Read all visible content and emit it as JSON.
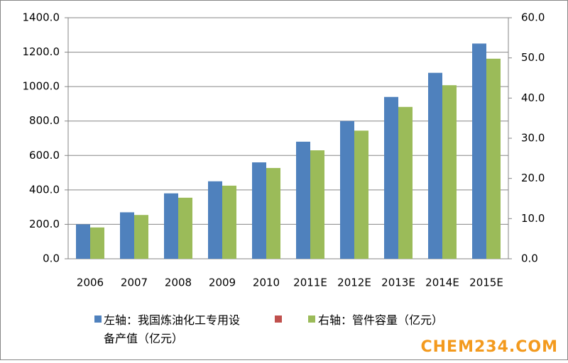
{
  "chart_data": {
    "type": "bar",
    "categories": [
      "2006",
      "2007",
      "2008",
      "2009",
      "2010",
      "2011E",
      "2012E",
      "2013E",
      "2014E",
      "2015E"
    ],
    "series": [
      {
        "name": "左轴：我国炼油化工专用设备产值（亿元）",
        "color": "#4f81bd",
        "values": [
          200,
          270,
          380,
          450,
          560,
          680,
          800,
          940,
          1080,
          1250
        ]
      },
      {
        "name": "右轴：管件容量（亿元）",
        "color": "#9bbb59",
        "axis": "y2",
        "values": [
          7.8,
          10.9,
          15.2,
          18.2,
          22.6,
          27.0,
          31.9,
          37.8,
          43.2,
          49.8
        ]
      }
    ],
    "ylim": [
      0,
      1400
    ],
    "yticks": [
      {
        "value": 0,
        "label": "0.0"
      },
      {
        "value": 200,
        "label": "200.0"
      },
      {
        "value": 400,
        "label": "400.0"
      },
      {
        "value": 600,
        "label": "600.0"
      },
      {
        "value": 800,
        "label": "800.0"
      },
      {
        "value": 1000,
        "label": "1000.0"
      },
      {
        "value": 1200,
        "label": "1200.0"
      },
      {
        "value": 1400,
        "label": "1400.0"
      }
    ],
    "y2lim": [
      0,
      60
    ],
    "y2ticks": [
      {
        "value": 0,
        "label": "0.0"
      },
      {
        "value": 10,
        "label": "10.0"
      },
      {
        "value": 20,
        "label": "20.0"
      },
      {
        "value": 30,
        "label": "30.0"
      },
      {
        "value": 40,
        "label": "40.0"
      },
      {
        "value": 50,
        "label": "50.0"
      },
      {
        "value": 60,
        "label": "60.0"
      }
    ],
    "grid": true,
    "watermark": "CHEM234.COM"
  }
}
